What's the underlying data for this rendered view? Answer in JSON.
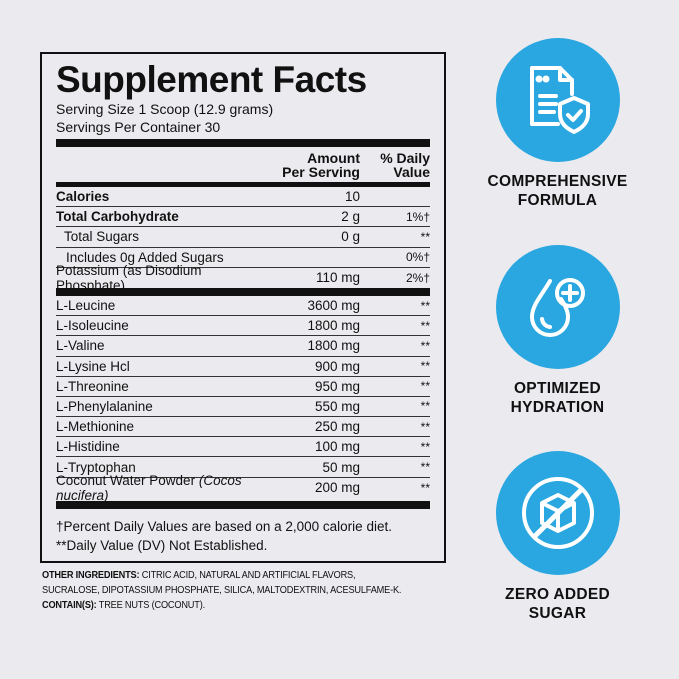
{
  "facts": {
    "title": "Supplement Facts",
    "serving_size": "Serving Size 1 Scoop (12.9 grams)",
    "servings_per_container": "Servings Per Container 30",
    "col_amount": [
      "Amount",
      "Per Serving"
    ],
    "col_dv": [
      "% Daily",
      "Value"
    ],
    "rows_top": [
      {
        "name": "Calories",
        "amount": "10",
        "dv": ""
      },
      {
        "name": "Total Carbohydrate",
        "amount": "2 g",
        "dv": "1%†"
      },
      {
        "name": "Total Sugars",
        "amount": "0 g",
        "dv": "**"
      },
      {
        "name": "Includes 0g Added Sugars",
        "amount": "",
        "dv": "0%†"
      },
      {
        "name": "Potassium (as Disodium Phosphate)",
        "amount": "110 mg",
        "dv": "2%†"
      }
    ],
    "rows_amino": [
      {
        "name": "L-Leucine",
        "amount": "3600 mg",
        "dv": "**"
      },
      {
        "name": "L-Isoleucine",
        "amount": "1800 mg",
        "dv": "**"
      },
      {
        "name": "L-Valine",
        "amount": "1800 mg",
        "dv": "**"
      },
      {
        "name": "L-Lysine Hcl",
        "amount": "900 mg",
        "dv": "**"
      },
      {
        "name": "L-Threonine",
        "amount": "950 mg",
        "dv": "**"
      },
      {
        "name": "L-Phenylalanine",
        "amount": "550 mg",
        "dv": "**"
      },
      {
        "name": "L-Methionine",
        "amount": "250 mg",
        "dv": "**"
      },
      {
        "name": "L-Histidine",
        "amount": "100 mg",
        "dv": "**"
      },
      {
        "name": "L-Tryptophan",
        "amount": "50 mg",
        "dv": "**"
      },
      {
        "name": "Coconut Water Powder",
        "name_italic": "(Cocos nucifera)",
        "amount": "200 mg",
        "dv": "**"
      }
    ],
    "footnotes": [
      "†Percent Daily Values are based on a 2,000 calorie diet.",
      "**Daily Value (DV) Not Established."
    ]
  },
  "other_ingredients": {
    "label": "OTHER INGREDIENTS:",
    "text": "CITRIC ACID, NATURAL AND ARTIFICIAL FLAVORS, SUCRALOSE, DIPOTASSIUM PHOSPHATE, SILICA, MALTODEXTRIN, ACESULFAME-K."
  },
  "contains": {
    "label": "CONTAIN(S):",
    "text": "TREE NUTS (COCONUT)."
  },
  "features": [
    {
      "icon": "document-shield-icon",
      "label": [
        "COMPREHENSIVE",
        "FORMULA"
      ]
    },
    {
      "icon": "water-drop-plus-icon",
      "label": [
        "OPTIMIZED",
        "HYDRATION"
      ]
    },
    {
      "icon": "no-sugar-cube-icon",
      "label": [
        "ZERO ADDED",
        "SUGAR"
      ]
    }
  ],
  "colors": {
    "accent": "#2aa7e0",
    "background": "#ebebef"
  }
}
